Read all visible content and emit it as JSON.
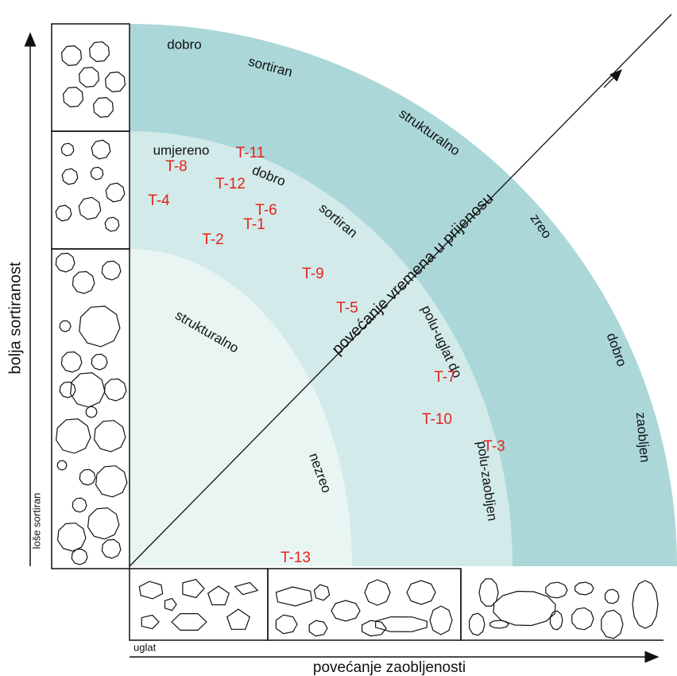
{
  "axes": {
    "y_label": "bolja sortiranost",
    "y_note": "loše sortiran",
    "x_label": "povećanje zaobljenosti",
    "x_note": "uglat",
    "diagonal": "povećanje vremena u prijenosu"
  },
  "zones": [
    "dobro",
    "sortiran",
    "strukturalno",
    "zreo",
    "dobro",
    "zaobljen",
    "umjereno",
    "dobro",
    "sortiran",
    "polu-uglat do",
    "polu-zaobljen",
    "strukturalno",
    "nezreo"
  ],
  "samples": [
    "T-11",
    "T-8",
    "T-12",
    "T-4",
    "T-6",
    "T-1",
    "T-2",
    "T-9",
    "T-5",
    "T-7",
    "T-10",
    "T-3",
    "T-13"
  ]
}
